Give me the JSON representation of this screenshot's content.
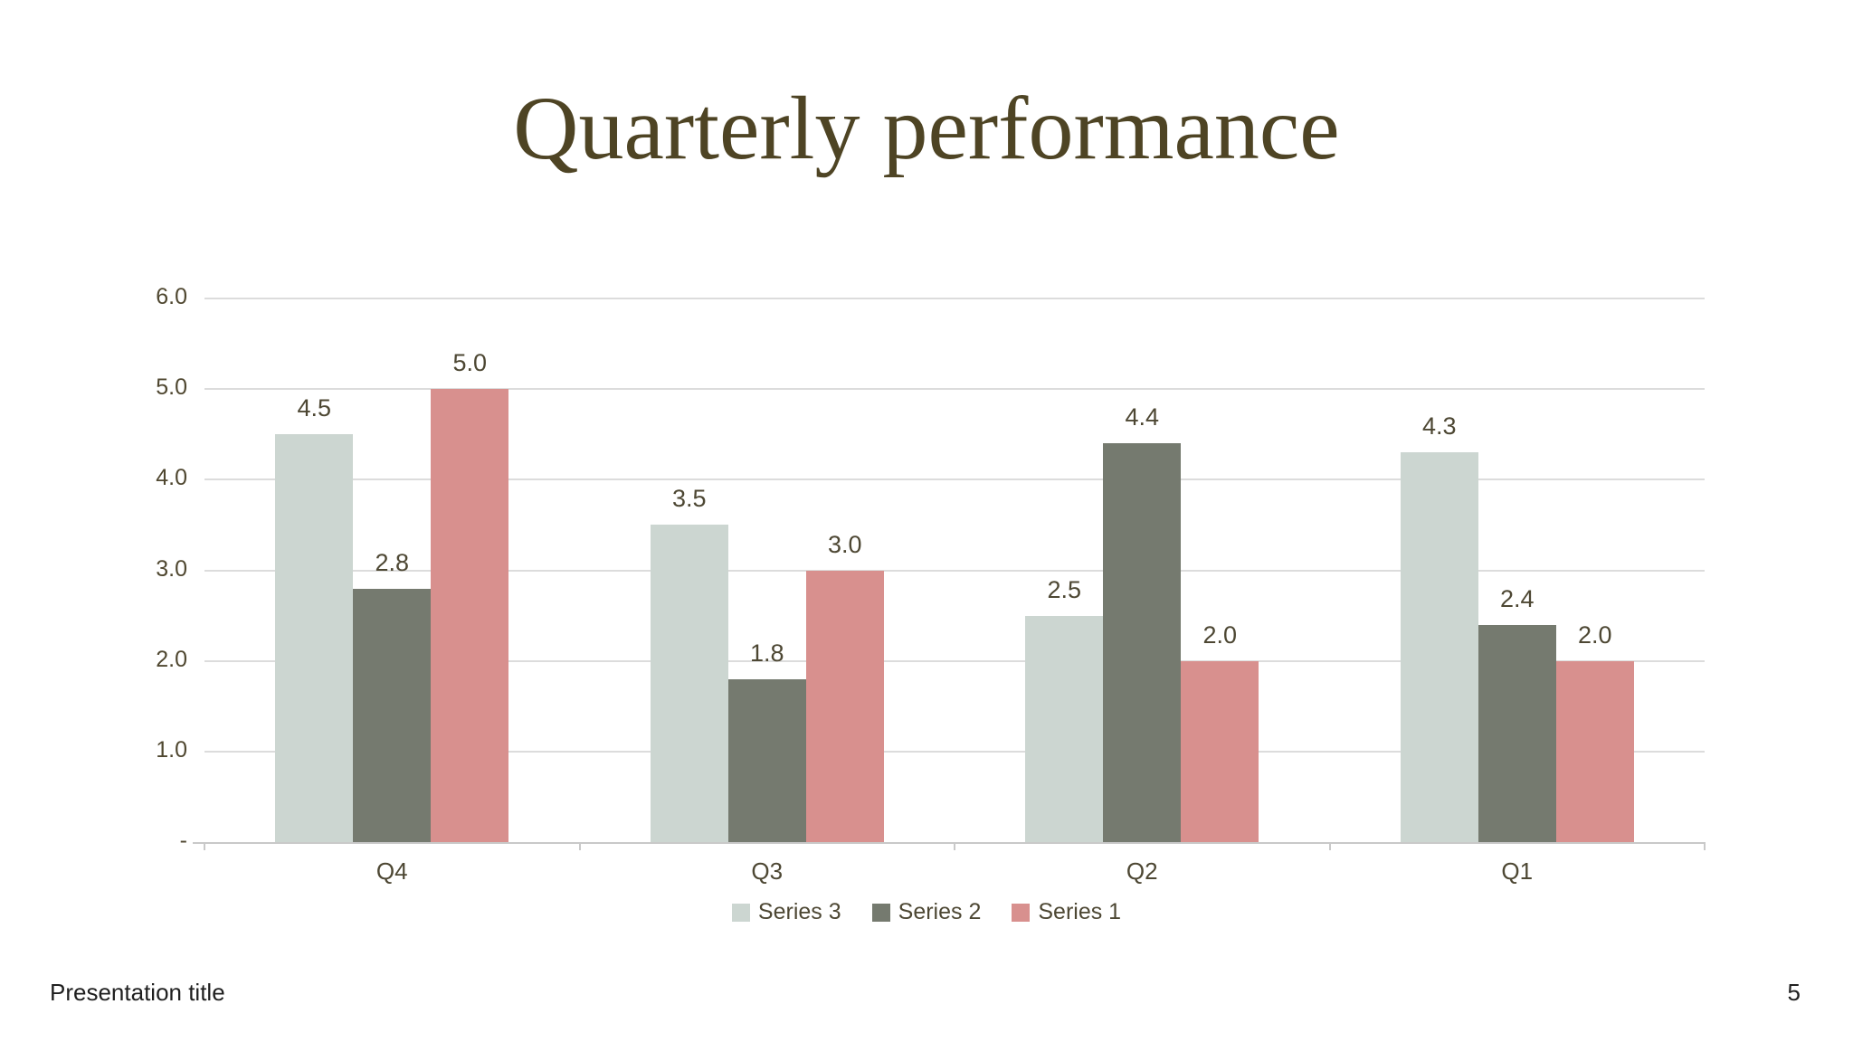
{
  "slide": {
    "title": "Quarterly performance",
    "footer": {
      "presentation_title": "Presentation title",
      "page_number": "5"
    }
  },
  "chart_data": {
    "type": "bar",
    "title": "Quarterly performance",
    "categories": [
      "Q4",
      "Q3",
      "Q2",
      "Q1"
    ],
    "series": [
      {
        "name": "Series 3",
        "color": "#ccd6d1",
        "values": [
          4.5,
          3.5,
          2.5,
          4.3
        ]
      },
      {
        "name": "Series 2",
        "color": "#757a6f",
        "values": [
          2.8,
          1.8,
          4.4,
          2.4
        ]
      },
      {
        "name": "Series 1",
        "color": "#d8908e",
        "values": [
          5.0,
          3.0,
          2.0,
          2.0
        ]
      }
    ],
    "y_axis": {
      "min": 0,
      "max": 6,
      "step": 1,
      "tick_labels": [
        "-",
        "1.0",
        "2.0",
        "3.0",
        "4.0",
        "5.0",
        "6.0"
      ]
    },
    "grid": true,
    "data_labels": true,
    "legend_position": "bottom",
    "colors": {
      "title_text": "#4e4424",
      "chart_text": "#4d4733",
      "gridline": "#dcdcdc",
      "axis_line": "#c9c9c9",
      "footer_text": "#1f1f1f",
      "background": "#ffffff"
    }
  }
}
